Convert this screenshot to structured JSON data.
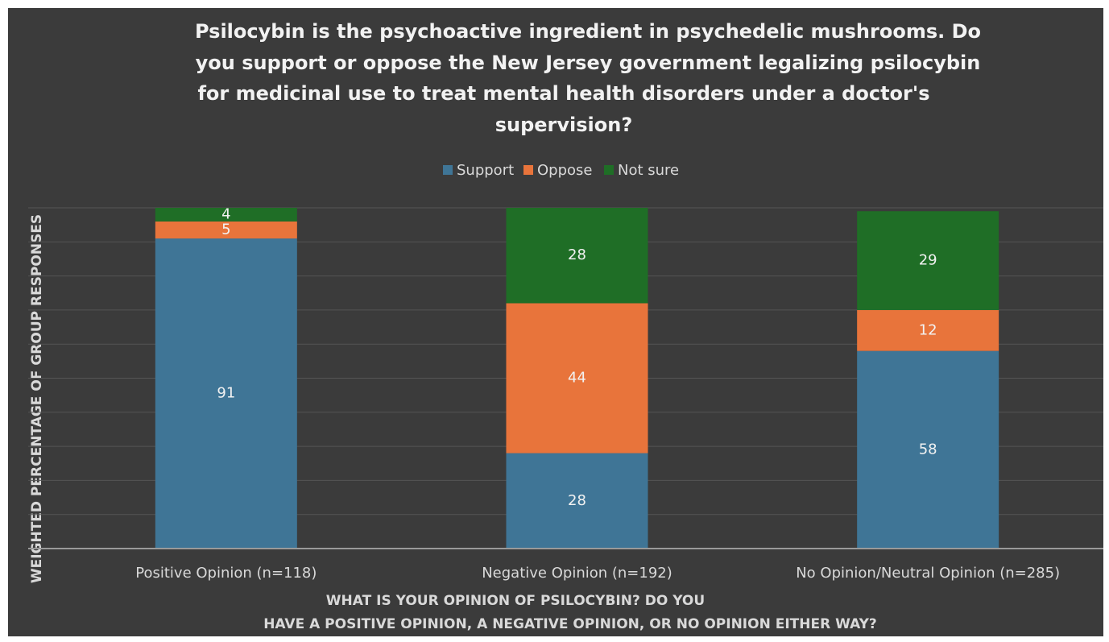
{
  "chart_data": {
    "type": "stacked_bar",
    "title": "Psilocybin is the psychoactive ingredient in psychedelic mushrooms. Do you support or oppose the New Jersey government legalizing psilocybin for medicinal use to treat mental health disorders under a doctor's supervision?",
    "title_lines": [
      "Psilocybin is the psychoactive ingredient in psychedelic mushrooms. Do",
      "you support or oppose the New Jersey government legalizing psilocybin",
      "for medicinal use to treat mental health disorders under a doctor's",
      "supervision?"
    ],
    "categories": [
      "Positive Opinion (n=118)",
      "Negative Opinion (n=192)",
      "No Opinion/Neutral Opinion (n=285)"
    ],
    "series": [
      {
        "name": "Support",
        "color": "#3f7596",
        "values": [
          91,
          28,
          58
        ]
      },
      {
        "name": "Oppose",
        "color": "#e8743b",
        "values": [
          5,
          44,
          12
        ]
      },
      {
        "name": "Not sure",
        "color": "#1f6e26",
        "values": [
          4,
          28,
          29
        ]
      }
    ],
    "ylabel": "WEIGHTED PERCENTAGE OF GROUP RESPONSES",
    "xlabel_lines": [
      "WHAT IS YOUR OPINION OF PSILOCYBIN? DO YOU",
      "HAVE A POSITIVE OPINION, A NEGATIVE OPINION, OR NO OPINION EITHER WAY?"
    ],
    "ylim": [
      0,
      100
    ],
    "yticks": [
      0,
      10,
      20,
      30,
      40,
      50,
      60,
      70,
      80,
      90,
      100
    ],
    "grid": true
  }
}
